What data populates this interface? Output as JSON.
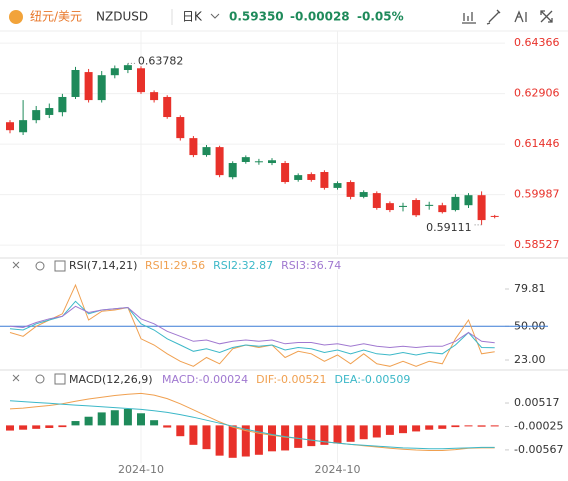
{
  "header": {
    "pair_cn": "纽元/美元",
    "symbol": "NZDUSD",
    "period": "日K",
    "price": "0.59350",
    "change": "-0.00028",
    "change_pct": "-0.05%"
  },
  "chart_data": [
    {
      "type": "candlestick",
      "categories": [
        null,
        null,
        null,
        null,
        null,
        null,
        null,
        null,
        null,
        null,
        "2024-10",
        null,
        null,
        null,
        null,
        null,
        null,
        null,
        null,
        null,
        null,
        null,
        null,
        null,
        null,
        "2024-10",
        null,
        null,
        null,
        null,
        null,
        null,
        null,
        null,
        null,
        null,
        null,
        null
      ],
      "open": [
        0.6208,
        0.6179,
        0.6214,
        0.6229,
        0.6237,
        0.6281,
        0.6353,
        0.6272,
        0.6344,
        0.6359,
        0.6364,
        0.6295,
        0.6281,
        0.6223,
        0.6162,
        0.6113,
        0.6136,
        0.6049,
        0.6093,
        0.6093,
        0.609,
        0.609,
        0.6041,
        0.6058,
        0.6064,
        0.6018,
        0.6035,
        0.5992,
        0.6003,
        0.5974,
        0.5963,
        0.5983,
        0.5966,
        0.5968,
        0.5954,
        0.5968,
        0.5997,
        0.5937
      ],
      "close": [
        0.6185,
        0.6214,
        0.6243,
        0.6249,
        0.6281,
        0.6359,
        0.6272,
        0.6344,
        0.6364,
        0.6373,
        0.6295,
        0.6272,
        0.6223,
        0.6162,
        0.6113,
        0.6136,
        0.6055,
        0.609,
        0.6107,
        0.6095,
        0.6098,
        0.6035,
        0.6055,
        0.6041,
        0.6018,
        0.6032,
        0.5992,
        0.6006,
        0.596,
        0.5954,
        0.5966,
        0.5939,
        0.5969,
        0.5948,
        0.5992,
        0.5997,
        0.5925,
        0.5935
      ],
      "high": [
        0.6214,
        0.6272,
        0.6255,
        0.6262,
        0.629,
        0.6368,
        0.6362,
        0.6356,
        0.6372,
        0.63782,
        0.637,
        0.63,
        0.6286,
        0.6228,
        0.6168,
        0.6142,
        0.614,
        0.6095,
        0.6112,
        0.6102,
        0.6104,
        0.6096,
        0.606,
        0.6063,
        0.6069,
        0.6037,
        0.604,
        0.6011,
        0.6008,
        0.5979,
        0.5975,
        0.5988,
        0.5978,
        0.5975,
        0.6,
        0.6003,
        0.6008,
        0.594
      ],
      "low": [
        0.6176,
        0.6171,
        0.6205,
        0.622,
        0.6225,
        0.6275,
        0.6265,
        0.6265,
        0.6335,
        0.635,
        0.629,
        0.6265,
        0.6218,
        0.6155,
        0.6107,
        0.6108,
        0.6049,
        0.6043,
        0.6088,
        0.6085,
        0.6084,
        0.603,
        0.6036,
        0.6036,
        0.6013,
        0.6013,
        0.5985,
        0.5988,
        0.5955,
        0.5948,
        0.595,
        0.5934,
        0.5955,
        0.5944,
        0.595,
        0.596,
        0.59111,
        0.593
      ],
      "up_color": "#1e8a5a",
      "down_color": "#e8312a",
      "ylim": [
        0.6466,
        0.5824
      ],
      "yticks": [
        0.64366,
        0.62906,
        0.61446,
        0.59987,
        0.58527
      ],
      "annotations": [
        0.63782,
        0.59111
      ],
      "grid": true
    },
    {
      "type": "line",
      "title": "RSI(7,14,21)",
      "series": [
        {
          "name": "RSI1:29.56",
          "color": "#f0a050",
          "values": [
            45,
            42,
            50,
            55,
            60,
            83,
            55,
            62,
            63,
            65,
            40,
            35,
            28,
            22,
            18,
            25,
            20,
            32,
            35,
            33,
            35,
            25,
            30,
            28,
            22,
            27,
            20,
            28,
            20,
            18,
            22,
            18,
            22,
            20,
            40,
            55,
            28,
            29.56
          ]
        },
        {
          "name": "RSI2:32.87",
          "color": "#3cb8c8",
          "values": [
            48,
            47,
            52,
            55,
            58,
            70,
            60,
            63,
            64,
            65,
            52,
            47,
            40,
            35,
            30,
            32,
            29,
            33,
            35,
            34,
            35,
            31,
            33,
            32,
            29,
            31,
            28,
            31,
            28,
            27,
            29,
            27,
            29,
            28,
            35,
            45,
            33,
            32.87
          ]
        },
        {
          "name": "RSI3:36.74",
          "color": "#a078d0",
          "values": [
            50,
            49,
            53,
            56,
            58,
            66,
            61,
            63,
            64,
            65,
            56,
            52,
            46,
            42,
            38,
            39,
            36,
            38,
            39,
            38,
            39,
            36,
            37,
            37,
            35,
            36,
            34,
            36,
            34,
            33,
            34,
            33,
            34,
            34,
            38,
            45,
            38,
            36.74
          ]
        }
      ],
      "ylim": [
        16.6,
        93.4
      ],
      "yticks": [
        79.81,
        {
          "value": 50,
          "label": "50.00"
        },
        {
          "value": 23,
          "label": "23.00"
        }
      ],
      "ref_line": {
        "value": 50,
        "color": "#3a7bd5"
      }
    },
    {
      "type": "macd",
      "title": "MACD(12,26,9)",
      "series": [
        {
          "name": "MACD:-0.00024",
          "type": "bar",
          "color": "#a078d0",
          "up_color": "#1e8a5a",
          "down_color": "#e8312a",
          "values": [
            -0.0012,
            -0.001,
            -0.0008,
            -0.0006,
            -0.0004,
            0.001,
            0.002,
            0.003,
            0.0035,
            0.0038,
            0.0028,
            0.0012,
            -0.0005,
            -0.0025,
            -0.0045,
            -0.0055,
            -0.007,
            -0.0075,
            -0.0072,
            -0.0068,
            -0.006,
            -0.0058,
            -0.0052,
            -0.0048,
            -0.0045,
            -0.0042,
            -0.0038,
            -0.0032,
            -0.0028,
            -0.0022,
            -0.0018,
            -0.0014,
            -0.001,
            -0.0008,
            -0.0004,
            -0.0002,
            -0.0003,
            -0.00024
          ]
        },
        {
          "name": "DIF:-0.00521",
          "type": "line",
          "color": "#f0a050",
          "values": [
            0.0038,
            0.004,
            0.0043,
            0.0046,
            0.005,
            0.0056,
            0.0061,
            0.0065,
            0.0069,
            0.0072,
            0.0074,
            0.007,
            0.0062,
            0.005,
            0.0036,
            0.0022,
            0.0008,
            -0.0004,
            -0.0012,
            -0.0018,
            -0.0023,
            -0.0027,
            -0.003,
            -0.0034,
            -0.0038,
            -0.0041,
            -0.0044,
            -0.0047,
            -0.005,
            -0.0053,
            -0.0055,
            -0.0057,
            -0.0058,
            -0.0058,
            -0.0056,
            -0.0053,
            -0.0052,
            -0.00521
          ]
        },
        {
          "name": "DEA:-0.00509",
          "type": "line",
          "color": "#3cb8c8",
          "values": [
            0.0057,
            0.0055,
            0.0053,
            0.0051,
            0.0049,
            0.0047,
            0.0045,
            0.0043,
            0.0041,
            0.0039,
            0.0037,
            0.0034,
            0.003,
            0.0025,
            0.0019,
            0.0012,
            0.0005,
            -0.0002,
            -0.0009,
            -0.0015,
            -0.0021,
            -0.0026,
            -0.003,
            -0.0034,
            -0.0038,
            -0.0041,
            -0.0044,
            -0.0046,
            -0.0048,
            -0.005,
            -0.0052,
            -0.0053,
            -0.0054,
            -0.0054,
            -0.0053,
            -0.0052,
            -0.0051,
            -0.00509
          ]
        }
      ],
      "ylim": [
        -0.0087,
        0.0098
      ],
      "yticks": [
        0.00517,
        -0.00025,
        -0.00567
      ]
    }
  ]
}
